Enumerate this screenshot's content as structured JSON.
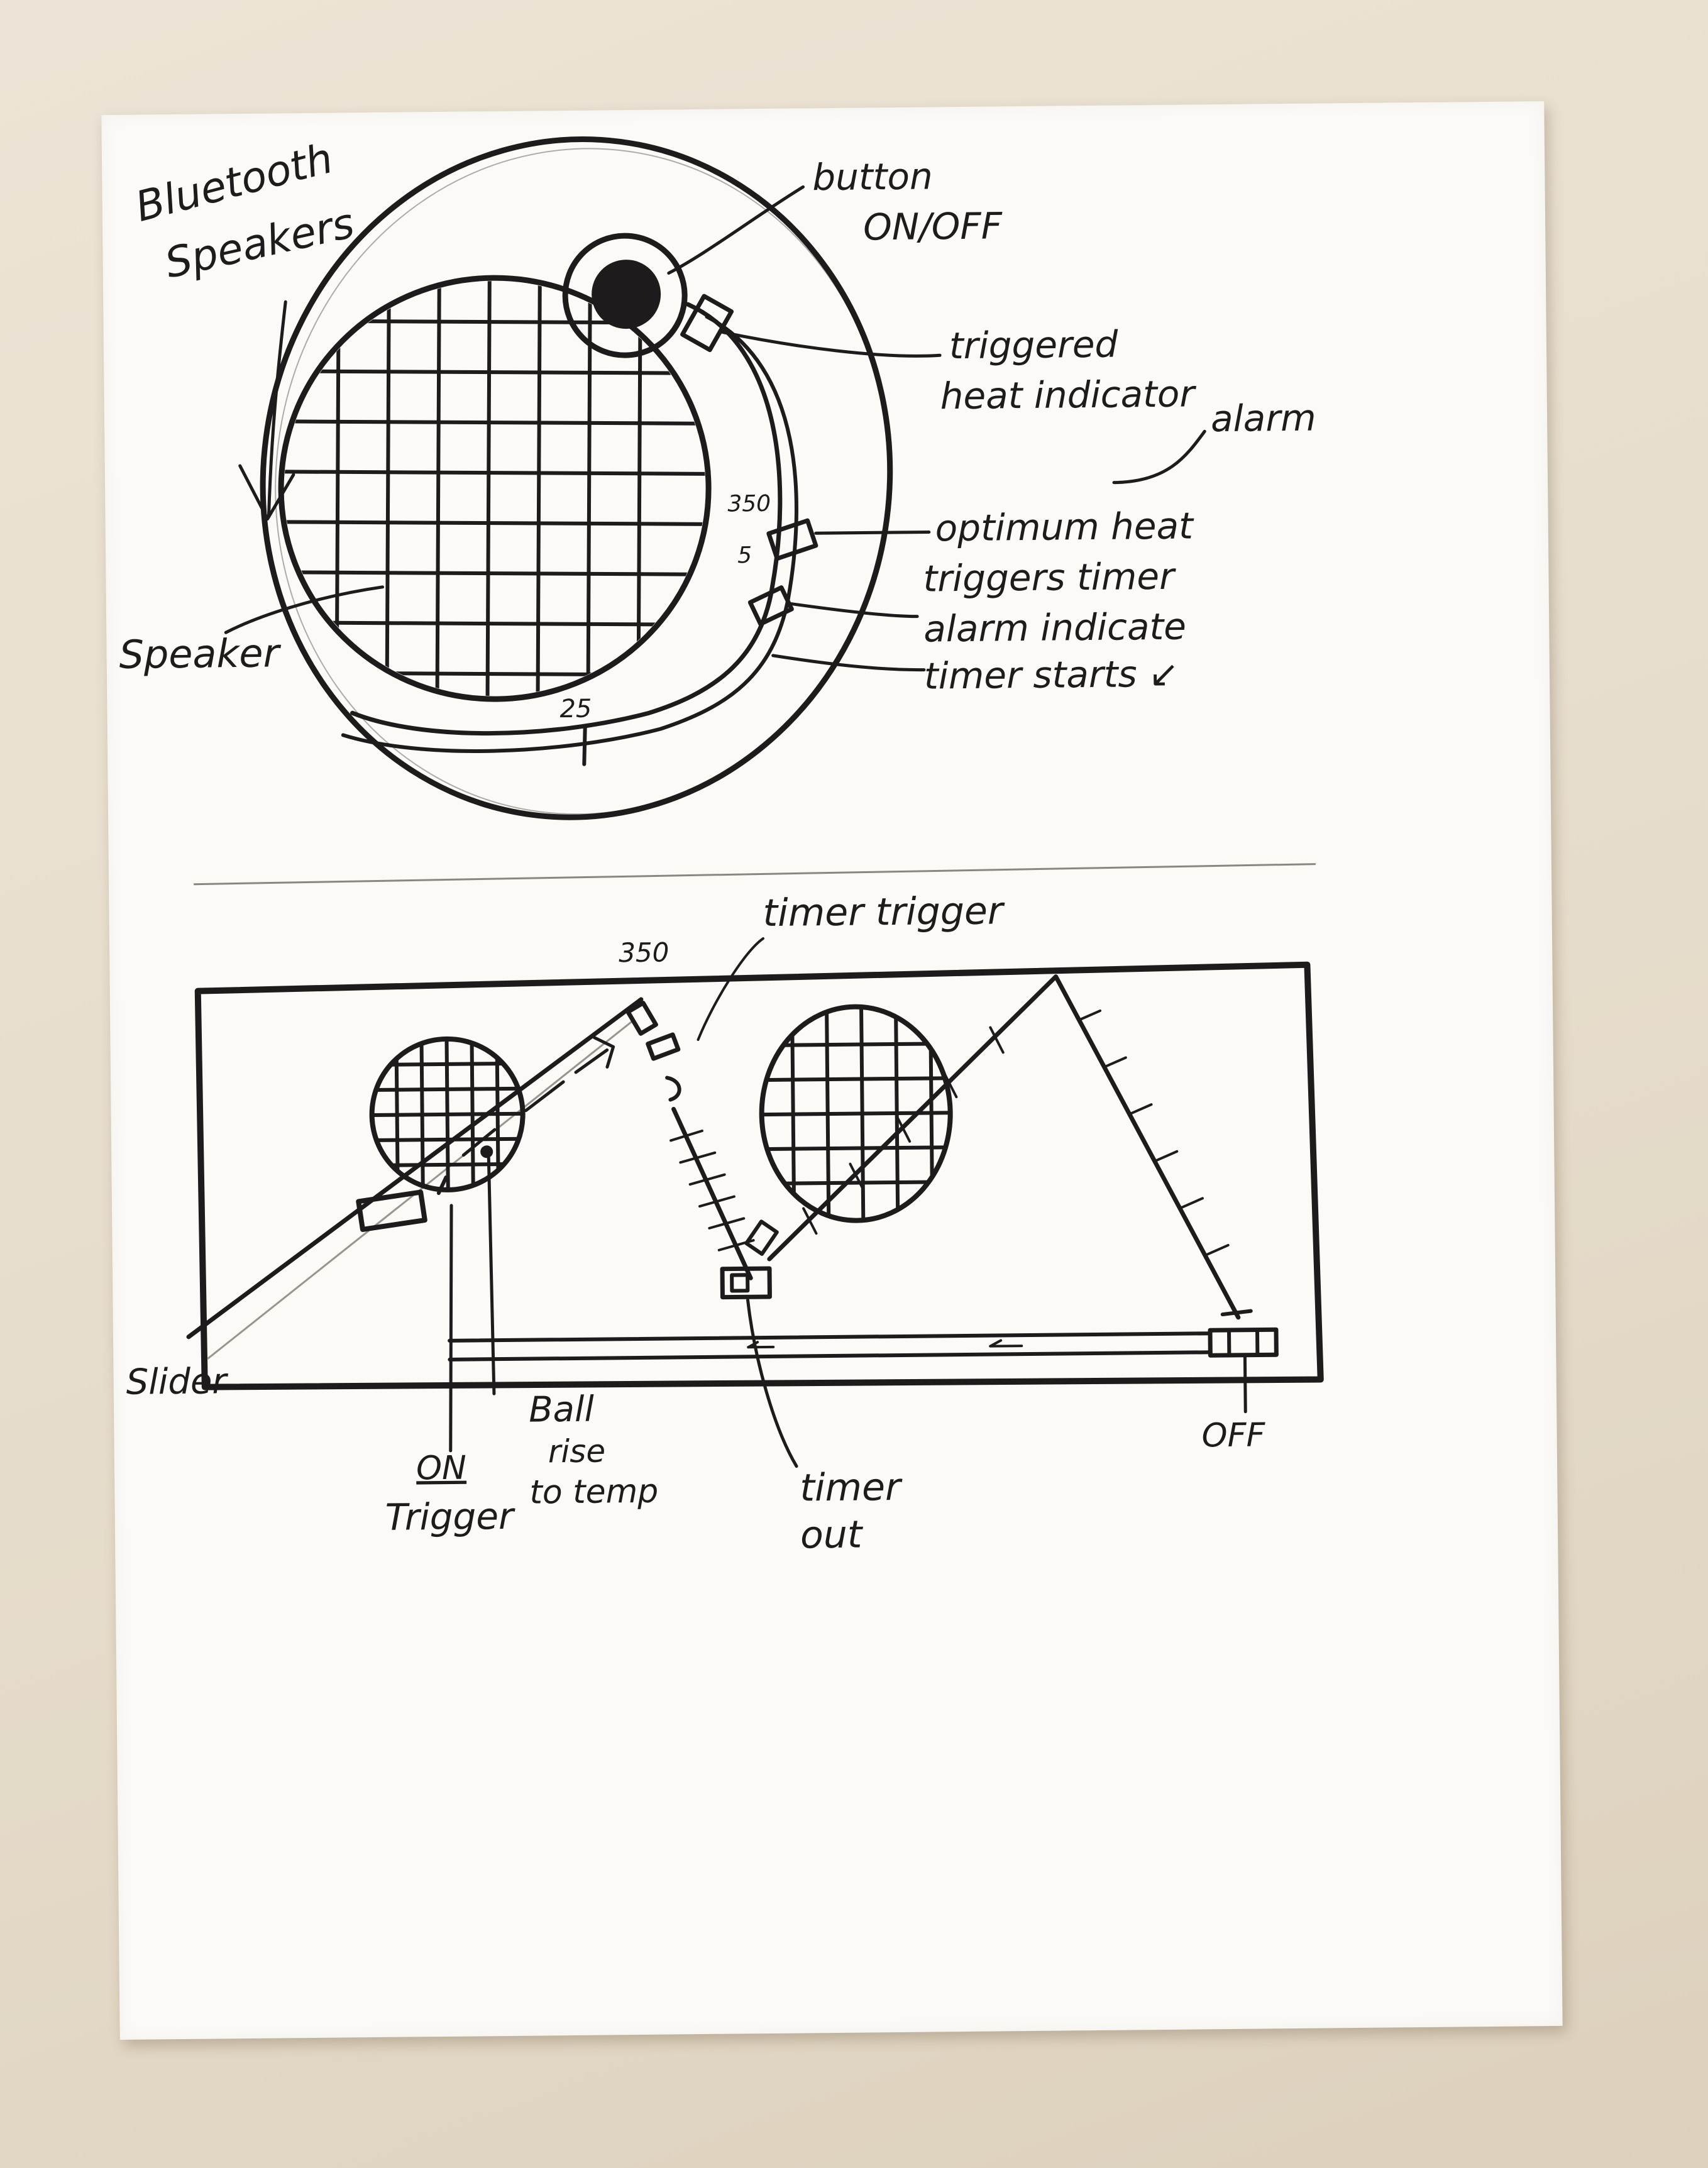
{
  "top_sketch": {
    "title_lines": [
      "Bluetooth",
      "Speakers"
    ],
    "speaker_label": "Speaker",
    "button_label_lines": [
      "button",
      "ON/OFF"
    ],
    "heat_indicator_lines": [
      "triggered",
      "heat indicator"
    ],
    "optimum_heat_lines": [
      "optimum heat",
      "triggers timer"
    ],
    "alarm_label": "alarm",
    "alarm_indicate": "alarm indicate",
    "timer_starts": "timer starts ↙",
    "gauge_value": "350",
    "gauge_small": "5",
    "timer_value": "25"
  },
  "bottom_sketch": {
    "temp_value": "350",
    "timer_trigger": "timer trigger",
    "slider_label": "Slider",
    "on_label": "ON",
    "trigger_label": "Trigger",
    "ball_label_lines": [
      "Ball",
      "rise",
      "to temp"
    ],
    "timer_out_lines": [
      "timer",
      "out"
    ],
    "off_label": "OFF"
  },
  "colors": {
    "ink": "#1d1b1b",
    "paper": "#fbfaf7",
    "background": "#e6dccb"
  }
}
